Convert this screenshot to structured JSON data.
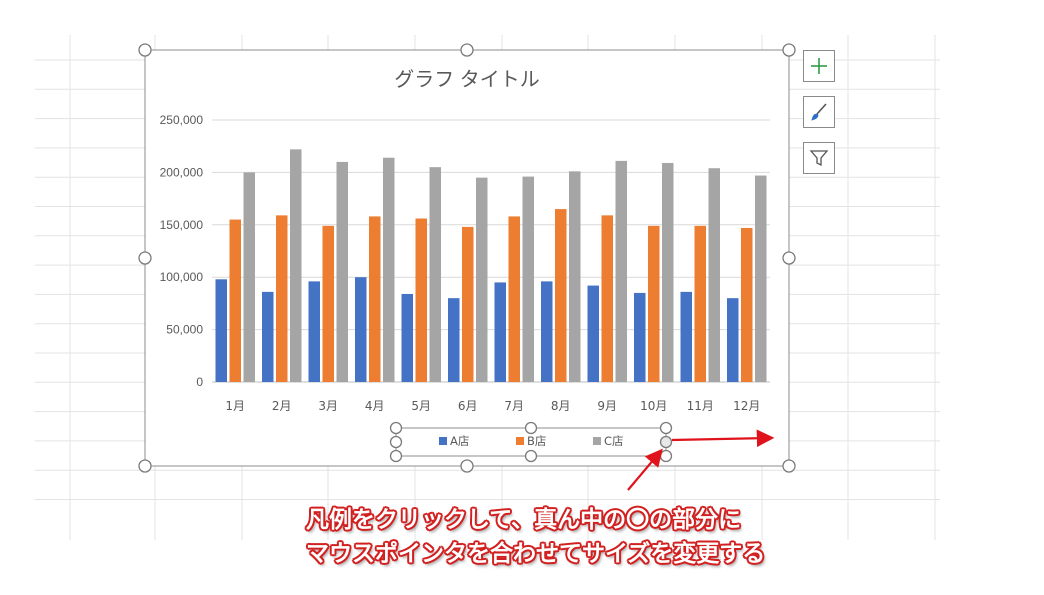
{
  "chart_data": {
    "type": "bar",
    "title": "グラフ タイトル",
    "categories": [
      "1月",
      "2月",
      "3月",
      "4月",
      "5月",
      "6月",
      "7月",
      "8月",
      "9月",
      "10月",
      "11月",
      "12月"
    ],
    "series": [
      {
        "name": "A店",
        "color": "#4472c4",
        "values": [
          98000,
          86000,
          96000,
          100000,
          84000,
          80000,
          95000,
          96000,
          92000,
          85000,
          86000,
          80000
        ]
      },
      {
        "name": "B店",
        "color": "#ed7d31",
        "values": [
          155000,
          159000,
          149000,
          158000,
          156000,
          148000,
          158000,
          165000,
          159000,
          149000,
          149000,
          147000
        ]
      },
      {
        "name": "C店",
        "color": "#a5a5a5",
        "values": [
          200000,
          222000,
          210000,
          214000,
          205000,
          195000,
          196000,
          201000,
          211000,
          209000,
          204000,
          197000
        ]
      }
    ],
    "yticks": [
      "0",
      "50,000",
      "100,000",
      "150,000",
      "200,000",
      "250,000"
    ],
    "ylim": [
      0,
      250000
    ],
    "grid": true,
    "legend_position": "bottom"
  },
  "side_buttons": {
    "add": "plus-icon",
    "style": "brush-icon",
    "filter": "filter-icon"
  },
  "annotation": {
    "line1": "凡例をクリックして、真ん中の〇の部分に",
    "line2": "マウスポインタを合わせてサイズを変更する",
    "arrow_color": "#e0121b"
  }
}
